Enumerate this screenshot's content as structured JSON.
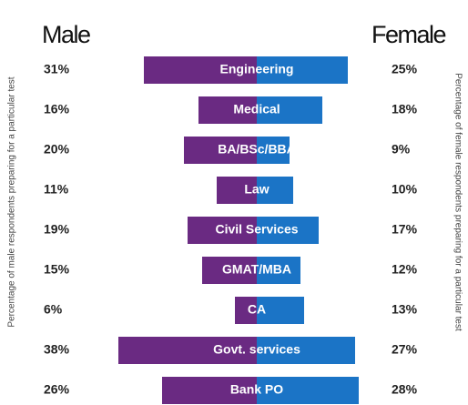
{
  "chart_data": {
    "type": "diverging-bar",
    "title_left": "Male",
    "title_right": "Female",
    "ylabel_left": "Percentage of male respondents preparing for a particular test",
    "ylabel_right": "Percentage of female respondents preparing for a particular test",
    "categories": [
      "Engineering",
      "Medical",
      "BA/BSc/BBA",
      "Law",
      "Civil Services",
      "GMAT/MBA",
      "CA",
      "Govt. services",
      "Bank PO"
    ],
    "series": [
      {
        "name": "Male",
        "color": "#6a2a82",
        "values": [
          31,
          16,
          20,
          11,
          19,
          15,
          6,
          38,
          26
        ],
        "value_labels": [
          "31%",
          "16%",
          "20%",
          "11%",
          "19%",
          "15%",
          "6%",
          "38%",
          "26%"
        ]
      },
      {
        "name": "Female",
        "color": "#1b74c6",
        "values": [
          25,
          18,
          9,
          10,
          17,
          12,
          13,
          27,
          28
        ],
        "value_labels": [
          "25%",
          "18%",
          "9%",
          "10%",
          "17%",
          "12%",
          "13%",
          "27%",
          "28%"
        ]
      }
    ]
  }
}
